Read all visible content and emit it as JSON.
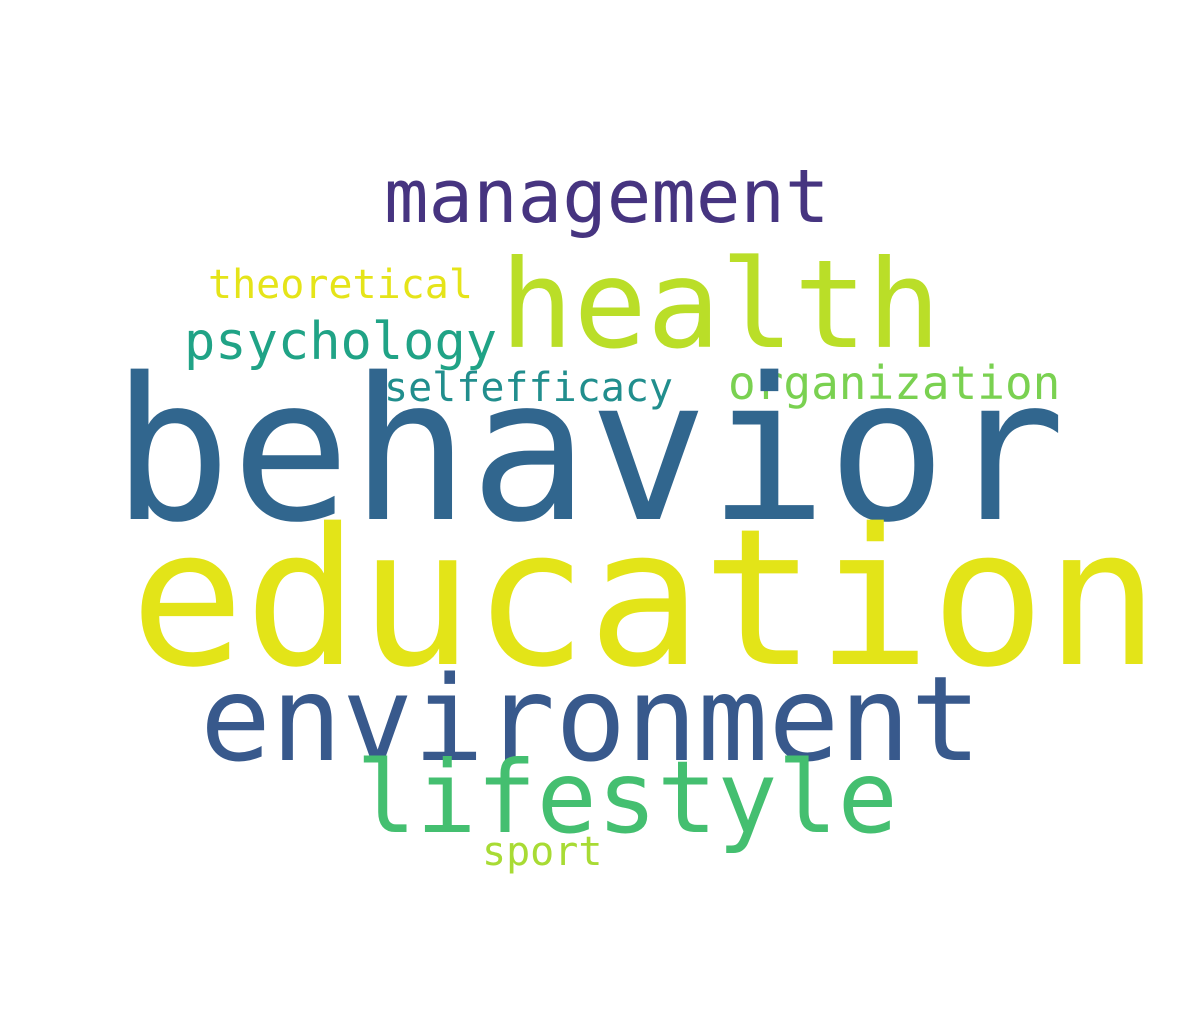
{
  "wordcloud": {
    "words": [
      {
        "text": "management",
        "color": "#463480"
      },
      {
        "text": "health",
        "color": "#bade28"
      },
      {
        "text": "theoretical",
        "color": "#e5e419"
      },
      {
        "text": "psychology",
        "color": "#20a386"
      },
      {
        "text": "selfefficacy",
        "color": "#218e8d"
      },
      {
        "text": "organization",
        "color": "#7ad151"
      },
      {
        "text": "behavior",
        "color": "#31668e"
      },
      {
        "text": "education",
        "color": "#e3e418"
      },
      {
        "text": "environment",
        "color": "#38598c"
      },
      {
        "text": "lifestyle",
        "color": "#44bf70"
      },
      {
        "text": "sport",
        "color": "#a8db34"
      }
    ]
  }
}
